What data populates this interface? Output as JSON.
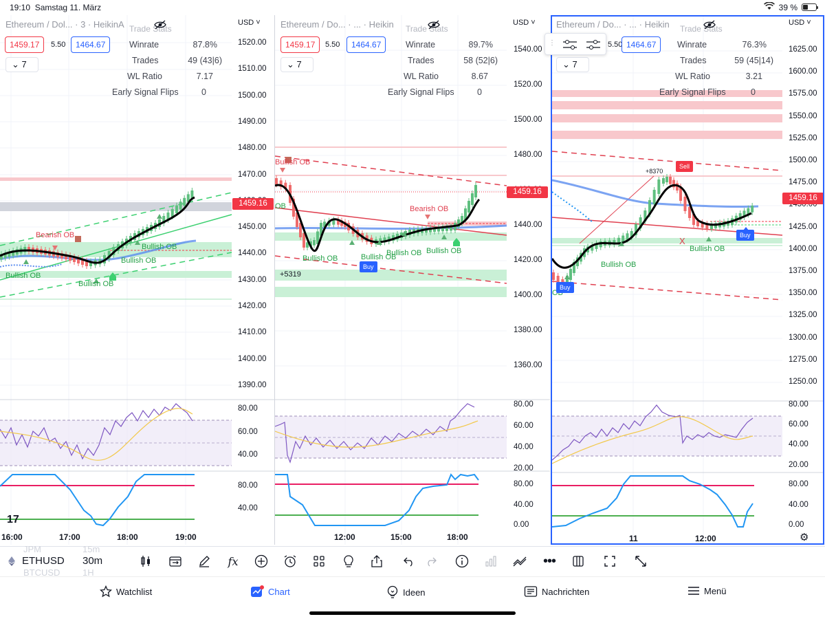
{
  "status_bar": {
    "time": "19:10",
    "date": "Samstag 11. März",
    "battery": "39 %"
  },
  "currency_label": "USD",
  "common": {
    "sell_price": "1459.17",
    "spread": "5.50",
    "buy_price": "1464.67",
    "interval_menu": "7",
    "trade_stats_title": "Trade Stats",
    "last_price": "1459.16",
    "stat_labels": {
      "winrate": "Winrate",
      "trades": "Trades",
      "wl_ratio": "WL Ratio",
      "early_flips": "Early Signal Flips"
    }
  },
  "panels": [
    {
      "title": "Ethereum / Dol... · 3 · HeikinA",
      "stats": {
        "winrate": "87.8%",
        "trades": "49 (43|6)",
        "wl_ratio": "7.17",
        "early_flips": "0"
      },
      "price_axis": [
        "1520.00",
        "1510.00",
        "1500.00",
        "1490.00",
        "1480.00",
        "1470.00",
        "1460.00",
        "1450.00",
        "1440.00",
        "1430.00",
        "1420.00",
        "1410.00",
        "1400.00",
        "1390.00"
      ],
      "rsi_axis": [
        "80.00",
        "60.00",
        "40.00"
      ],
      "osc_axis": [
        "80.00",
        "40.00"
      ],
      "time_axis": [
        "16:00",
        "17:00",
        "18:00",
        "19:00"
      ],
      "labels": {
        "bearish_ob": "Bearish OB",
        "bullish_ob_1": "Bullish OB",
        "bullish_ob_2": "Bullish OB",
        "bullish_ob_3": "Bullish OB",
        "bullish_ob_4": "Bullish OB"
      }
    },
    {
      "title": "Ethereum / Do... · ... · Heikin",
      "stats": {
        "winrate": "89.7%",
        "trades": "58 (52|6)",
        "wl_ratio": "8.67",
        "early_flips": "0"
      },
      "price_axis": [
        "1540.00",
        "1520.00",
        "1500.00",
        "1480.00",
        "1460.00",
        "1440.00",
        "1420.00",
        "1400.00",
        "1380.00",
        "1360.00"
      ],
      "rsi_axis": [
        "80.00",
        "60.00",
        "40.00",
        "20.00"
      ],
      "osc_axis": [
        "80.00",
        "40.00",
        "0.00"
      ],
      "time_axis": [
        "12:00",
        "15:00",
        "18:00"
      ],
      "labels": {
        "bullish_ob_top": "Bullish OB",
        "bearish_ob": "Bearish OB",
        "ob_left": "OB",
        "bullish_ob_1": "Bullish OB",
        "bullish_ob_2": "Bullish OB",
        "bullish_ob_3": "Bullish OB",
        "bullish_ob_4": "Bullish OB",
        "profit": "+5319",
        "buy": "Buy"
      }
    },
    {
      "title": "Ethereum / Do... · ... · Heikin",
      "stats": {
        "winrate": "76.3%",
        "trades": "59 (45|14)",
        "wl_ratio": "3.21",
        "early_flips": "0"
      },
      "price_axis": [
        "1625.00",
        "1600.00",
        "1575.00",
        "1550.00",
        "1525.00",
        "1500.00",
        "1475.00",
        "1450.00",
        "1425.00",
        "1400.00",
        "1375.00",
        "1350.00",
        "1325.00",
        "1300.00",
        "1275.00",
        "1250.00"
      ],
      "rsi_axis": [
        "80.00",
        "60.00",
        "40.00",
        "20.00"
      ],
      "osc_axis": [
        "80.00",
        "40.00",
        "0.00"
      ],
      "time_axis": [
        "11",
        "12:00"
      ],
      "labels": {
        "bullish_ob_1": "Bullish OB",
        "bullish_ob_2": "Bullish OB",
        "ob_left": "OB",
        "profit": "+8370",
        "sell": "Sell",
        "buy_1": "Buy",
        "buy_2": "Buy"
      }
    }
  ],
  "toolbar": {
    "symbol": "ETHUSD",
    "symbol_ghost_above": "JPM",
    "symbol_ghost_below": "BTCUSD",
    "interval": "30m",
    "interval_ghost_above": "15m",
    "interval_ghost_below": "1H"
  },
  "tabs": {
    "watchlist": "Watchlist",
    "chart": "Chart",
    "ideas": "Ideen",
    "news": "Nachrichten",
    "menu": "Menü"
  },
  "colors": {
    "accent": "#2962ff",
    "sell": "#f23645",
    "bullish": "#26a148",
    "rsi": "#7e57c2",
    "osc": "#2196f3"
  }
}
